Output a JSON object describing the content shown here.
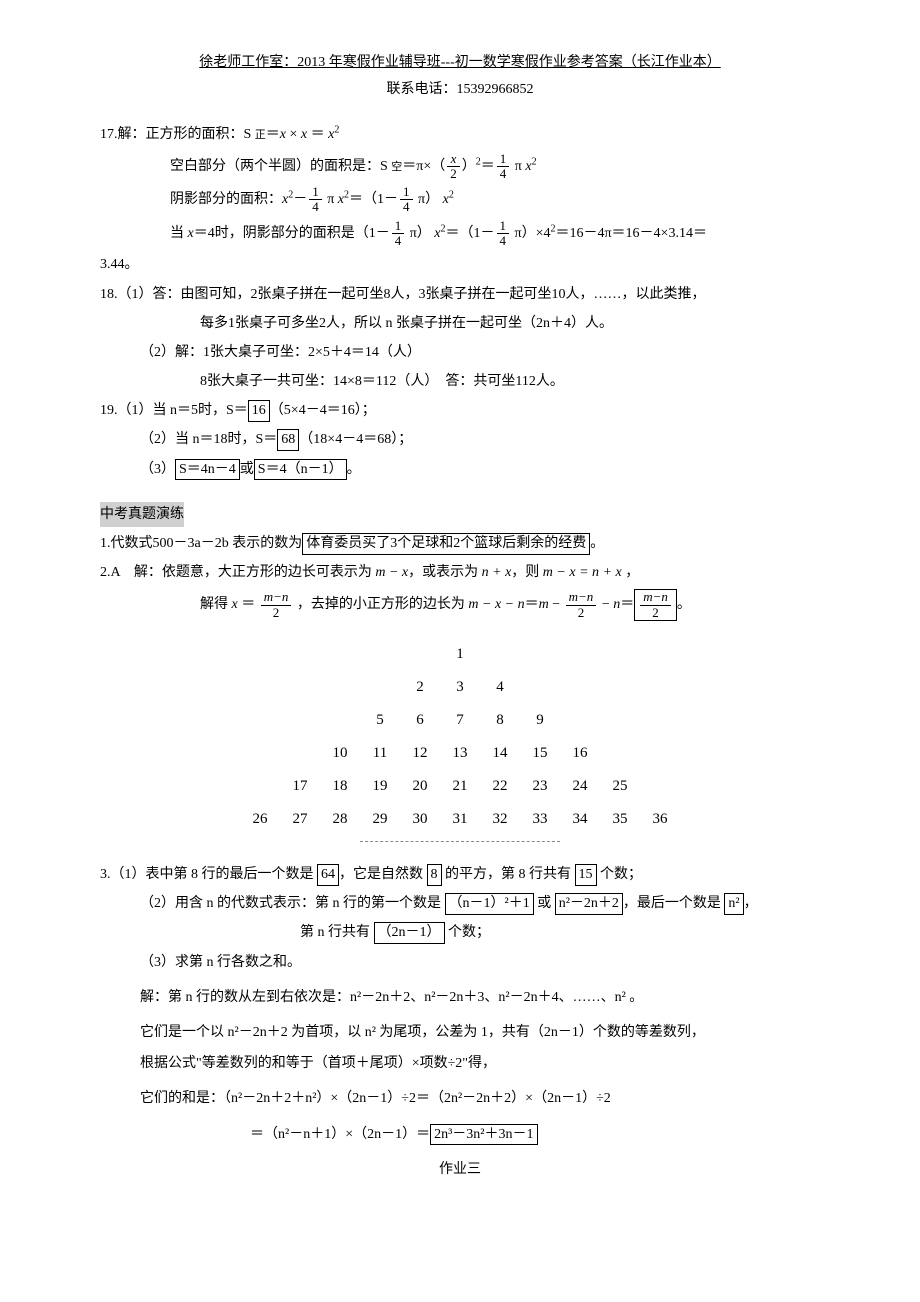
{
  "header": {
    "title": "徐老师工作室：2013 年寒假作业辅导班---初一数学寒假作业参考答案（长江作业本）",
    "phone_label": "联系电话：15392966852"
  },
  "p17": {
    "line1_prefix": "17.解：正方形的面积：S ",
    "line1_sub": "正",
    "line1_eq": "＝",
    "line2_prefix": "空白部分（两个半圆）的面积是：S ",
    "line2_sub": "空",
    "line2_mid": "＝π×（",
    "line2_after": "）",
    "line2_eq": "＝",
    "line2_pi": " π ",
    "line3_prefix": "阴影部分的面积：",
    "line3_mid": " π ",
    "line3_eq": "＝（1－",
    "line3_pi": " π）",
    "line4_prefix": "当 ",
    "line4_mid": "＝4时，阴影部分的面积是（1－",
    "line4_a": " π）",
    "line4_b": "＝（1－",
    "line4_c": " π）×4",
    "line4_d": "＝16－4π＝16－4×3.14＝",
    "result": "3.44。"
  },
  "p18": {
    "line1": "18.（1）答：由图可知，2张桌子拼在一起可坐8人，3张桌子拼在一起可坐10人，……，以此类推，",
    "line1b": "每多1张桌子可多坐2人，所以 n 张桌子拼在一起可坐（2n＋4）人。",
    "line2a": "（2）解：1张大桌子可坐：2×5＋4＝14（人）",
    "line2b": "8张大桌子一共可坐：14×8＝112（人）　答：共可坐112人。"
  },
  "p19": {
    "line1a": "19.（1）当 n＝5时，S＝",
    "line1box": "16",
    "line1b": "（5×4－4＝16）；",
    "line2a": "（2）当 n＝18时，S＝",
    "line2box": "68",
    "line2b": "（18×4－4＝68）；",
    "line3a": "（3）",
    "line3box1": "S＝4n－4",
    "line3mid": "或",
    "line3box2": "S＝4（n－1）",
    "line3end": "。"
  },
  "section_heading": "中考真题演练",
  "zk1": {
    "prefix": "1.代数式500－3a－2b 表示的数为",
    "box": "体育委员买了3个足球和2个篮球后剩余的经费",
    "suffix": "。"
  },
  "zk2": {
    "line1": "2.A　解：依题意，大正方形的边长可表示为 ",
    "line1b": "，或表示为 ",
    "line1c": "，则 ",
    "line1d": " ，",
    "line2a": "解得 ",
    "line2b": " ，去掉的小正方形的边长为 ",
    "line2c": "＝",
    "line2d": "＝",
    "suffix": "。"
  },
  "pyramid": {
    "rows": [
      [
        "1"
      ],
      [
        "2",
        "3",
        "4"
      ],
      [
        "5",
        "6",
        "7",
        "8",
        "9"
      ],
      [
        "10",
        "11",
        "12",
        "13",
        "14",
        "15",
        "16"
      ],
      [
        "17",
        "18",
        "19",
        "20",
        "21",
        "22",
        "23",
        "24",
        "25"
      ],
      [
        "26",
        "27",
        "28",
        "29",
        "30",
        "31",
        "32",
        "33",
        "34",
        "35",
        "36"
      ]
    ]
  },
  "zk3": {
    "line1a": "3.（1）表中第 8 行的最后一个数是 ",
    "box1": "64",
    "line1b": "，它是自然数 ",
    "box2": "8",
    "line1c": " 的平方，第 8 行共有 ",
    "box3": "15",
    "line1d": " 个数；",
    "line2a": "（2）用含 n 的代数式表示：第 n 行的第一个数是 ",
    "box4": "（n－1）²＋1",
    "line2mid": " 或 ",
    "box4b": "n²－2n＋2",
    "line2b": "，最后一个数是 ",
    "box5": "n²",
    "line2c": "，",
    "line2d": "第 n 行共有 ",
    "box6": "（2n－1）",
    "line2e": " 个数；",
    "line3": "（3）求第 n 行各数之和。",
    "line4": "解：第 n 行的数从左到右依次是：n²－2n＋2、n²－2n＋3、n²－2n＋4、……、n² 。",
    "line5": "它们是一个以 n²－2n＋2 为首项，以 n² 为尾项，公差为 1，共有（2n－1）个数的等差数列，",
    "line6": "根据公式\"等差数列的和等于（首项＋尾项）×项数÷2\"得，",
    "line7": "它们的和是：（n²－2n＋2＋n²）×（2n－1）÷2＝（2n²－2n＋2）×（2n－1）÷2",
    "line8a": "＝（n²－n＋1）×（2n－1）＝",
    "box7": "2n³－3n²＋3n－1"
  },
  "footer": "作业三"
}
